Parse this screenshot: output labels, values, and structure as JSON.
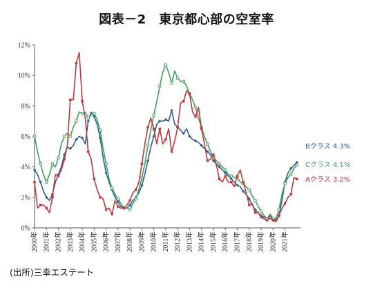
{
  "title": "図表－2　東京都心部の空室率",
  "source_note": "(出所)三幸エステート",
  "chart_data": {
    "type": "line",
    "title": "図表－2　東京都心部の空室率",
    "xlabel": "",
    "ylabel": "",
    "ylim": [
      0,
      12
    ],
    "yticks": [
      "0%",
      "2%",
      "4%",
      "6%",
      "8%",
      "10%",
      "12%"
    ],
    "xlim": [
      2000,
      2022.3
    ],
    "xticks": [
      "2000年",
      "2001年",
      "2002年",
      "2003年",
      "2004年",
      "2005年",
      "2006年",
      "2007年",
      "2008年",
      "2009年",
      "2010年",
      "2011年",
      "2012年",
      "2013年",
      "2014年",
      "2015年",
      "2016年",
      "2017年",
      "2018年",
      "2019年",
      "2020年",
      "2021年"
    ],
    "grid": false,
    "legend": "right, next to line ends",
    "series": [
      {
        "name": "Bクラス",
        "end_label": "Bクラス 4.3%",
        "color": "#2f5d9e",
        "marker": "diamond",
        "points": [
          [
            2000.0,
            3.8
          ],
          [
            2000.25,
            3.5
          ],
          [
            2000.5,
            3.0
          ],
          [
            2000.75,
            2.4
          ],
          [
            2001.0,
            2.0
          ],
          [
            2001.25,
            1.8
          ],
          [
            2001.5,
            2.2
          ],
          [
            2001.75,
            3.0
          ],
          [
            2002.0,
            3.5
          ],
          [
            2002.25,
            4.0
          ],
          [
            2002.5,
            4.8
          ],
          [
            2002.75,
            5.3
          ],
          [
            2003.0,
            5.2
          ],
          [
            2003.25,
            5.4
          ],
          [
            2003.5,
            5.8
          ],
          [
            2003.75,
            6.0
          ],
          [
            2004.0,
            5.9
          ],
          [
            2004.25,
            5.5
          ],
          [
            2004.5,
            7.0
          ],
          [
            2004.75,
            7.6
          ],
          [
            2005.0,
            7.3
          ],
          [
            2005.25,
            6.8
          ],
          [
            2005.5,
            5.9
          ],
          [
            2005.75,
            4.6
          ],
          [
            2006.0,
            3.6
          ],
          [
            2006.25,
            3.0
          ],
          [
            2006.5,
            2.5
          ],
          [
            2006.75,
            2.0
          ],
          [
            2007.0,
            1.7
          ],
          [
            2007.25,
            1.4
          ],
          [
            2007.5,
            1.3
          ],
          [
            2007.75,
            1.3
          ],
          [
            2008.0,
            1.5
          ],
          [
            2008.25,
            1.8
          ],
          [
            2008.5,
            2.0
          ],
          [
            2008.75,
            2.3
          ],
          [
            2009.0,
            2.8
          ],
          [
            2009.25,
            3.5
          ],
          [
            2009.5,
            4.4
          ],
          [
            2009.75,
            5.3
          ],
          [
            2010.0,
            6.0
          ],
          [
            2010.25,
            6.8
          ],
          [
            2010.5,
            7.0
          ],
          [
            2010.75,
            7.0
          ],
          [
            2011.0,
            7.1
          ],
          [
            2011.25,
            7.0
          ],
          [
            2011.5,
            7.7
          ],
          [
            2011.75,
            6.8
          ],
          [
            2012.0,
            6.6
          ],
          [
            2012.25,
            6.4
          ],
          [
            2012.5,
            6.2
          ],
          [
            2012.75,
            6.5
          ],
          [
            2013.0,
            6.0
          ],
          [
            2013.25,
            5.8
          ],
          [
            2013.5,
            5.7
          ],
          [
            2013.75,
            5.6
          ],
          [
            2014.0,
            5.4
          ],
          [
            2014.25,
            5.2
          ],
          [
            2014.5,
            5.0
          ],
          [
            2014.75,
            4.8
          ],
          [
            2015.0,
            4.4
          ],
          [
            2015.25,
            4.2
          ],
          [
            2015.5,
            4.0
          ],
          [
            2015.75,
            3.8
          ],
          [
            2016.0,
            3.6
          ],
          [
            2016.25,
            3.4
          ],
          [
            2016.5,
            3.2
          ],
          [
            2016.75,
            3.0
          ],
          [
            2017.0,
            2.8
          ],
          [
            2017.25,
            2.7
          ],
          [
            2017.5,
            2.4
          ],
          [
            2017.75,
            2.2
          ],
          [
            2018.0,
            1.9
          ],
          [
            2018.25,
            1.5
          ],
          [
            2018.5,
            1.2
          ],
          [
            2018.75,
            1.0
          ],
          [
            2019.0,
            0.8
          ],
          [
            2019.25,
            0.7
          ],
          [
            2019.5,
            0.6
          ],
          [
            2019.75,
            0.6
          ],
          [
            2020.0,
            0.55
          ],
          [
            2020.25,
            0.5
          ],
          [
            2020.5,
            0.8
          ],
          [
            2020.75,
            1.8
          ],
          [
            2021.0,
            3.0
          ],
          [
            2021.25,
            3.6
          ],
          [
            2021.5,
            3.9
          ],
          [
            2021.75,
            4.1
          ],
          [
            2022.0,
            4.3
          ]
        ]
      },
      {
        "name": "Cクラス",
        "end_label": "Cクラス 4.1%",
        "color": "#3aa354",
        "marker": "circle",
        "points": [
          [
            2000.0,
            6.0
          ],
          [
            2000.25,
            5.0
          ],
          [
            2000.5,
            4.2
          ],
          [
            2000.75,
            3.5
          ],
          [
            2001.0,
            3.0
          ],
          [
            2001.25,
            3.5
          ],
          [
            2001.5,
            4.2
          ],
          [
            2001.75,
            4.0
          ],
          [
            2002.0,
            4.6
          ],
          [
            2002.25,
            5.5
          ],
          [
            2002.5,
            6.0
          ],
          [
            2002.75,
            6.2
          ],
          [
            2003.0,
            6.0
          ],
          [
            2003.25,
            6.6
          ],
          [
            2003.5,
            7.0
          ],
          [
            2003.75,
            7.6
          ],
          [
            2004.0,
            7.5
          ],
          [
            2004.25,
            7.6
          ],
          [
            2004.5,
            7.2
          ],
          [
            2004.75,
            7.4
          ],
          [
            2005.0,
            7.5
          ],
          [
            2005.25,
            7.1
          ],
          [
            2005.5,
            6.4
          ],
          [
            2005.75,
            5.2
          ],
          [
            2006.0,
            4.2
          ],
          [
            2006.25,
            3.2
          ],
          [
            2006.5,
            2.6
          ],
          [
            2006.75,
            2.2
          ],
          [
            2007.0,
            1.9
          ],
          [
            2007.25,
            1.6
          ],
          [
            2007.5,
            1.3
          ],
          [
            2007.75,
            1.3
          ],
          [
            2008.0,
            1.2
          ],
          [
            2008.25,
            1.6
          ],
          [
            2008.5,
            1.9
          ],
          [
            2008.75,
            2.5
          ],
          [
            2009.0,
            3.3
          ],
          [
            2009.25,
            4.2
          ],
          [
            2009.5,
            5.4
          ],
          [
            2009.75,
            6.4
          ],
          [
            2010.0,
            7.4
          ],
          [
            2010.25,
            8.3
          ],
          [
            2010.5,
            9.3
          ],
          [
            2010.75,
            10.2
          ],
          [
            2011.0,
            10.7
          ],
          [
            2011.25,
            10.2
          ],
          [
            2011.5,
            9.5
          ],
          [
            2011.75,
            10.3
          ],
          [
            2012.0,
            9.8
          ],
          [
            2012.25,
            9.6
          ],
          [
            2012.5,
            9.6
          ],
          [
            2012.75,
            9.3
          ],
          [
            2013.0,
            8.8
          ],
          [
            2013.25,
            8.4
          ],
          [
            2013.5,
            7.9
          ],
          [
            2013.75,
            7.2
          ],
          [
            2014.0,
            6.6
          ],
          [
            2014.25,
            6.0
          ],
          [
            2014.5,
            5.5
          ],
          [
            2014.75,
            5.0
          ],
          [
            2015.0,
            4.6
          ],
          [
            2015.25,
            4.4
          ],
          [
            2015.5,
            4.2
          ],
          [
            2015.75,
            4.0
          ],
          [
            2016.0,
            3.8
          ],
          [
            2016.25,
            3.5
          ],
          [
            2016.5,
            3.4
          ],
          [
            2016.75,
            3.3
          ],
          [
            2017.0,
            3.3
          ],
          [
            2017.25,
            3.0
          ],
          [
            2017.5,
            2.9
          ],
          [
            2017.75,
            2.7
          ],
          [
            2018.0,
            2.5
          ],
          [
            2018.25,
            2.1
          ],
          [
            2018.5,
            1.8
          ],
          [
            2018.75,
            1.4
          ],
          [
            2019.0,
            1.1
          ],
          [
            2019.25,
            0.8
          ],
          [
            2019.5,
            0.6
          ],
          [
            2019.75,
            0.9
          ],
          [
            2020.0,
            0.6
          ],
          [
            2020.25,
            0.6
          ],
          [
            2020.5,
            1.2
          ],
          [
            2020.75,
            2.2
          ],
          [
            2021.0,
            2.9
          ],
          [
            2021.25,
            3.3
          ],
          [
            2021.5,
            3.5
          ],
          [
            2021.75,
            3.9
          ],
          [
            2022.0,
            4.1
          ]
        ]
      },
      {
        "name": "Aクラス",
        "end_label": "Aクラス 3.2%",
        "color": "#c8353a",
        "marker": "square",
        "points": [
          [
            2000.0,
            3.0
          ],
          [
            2000.25,
            1.3
          ],
          [
            2000.5,
            1.5
          ],
          [
            2000.75,
            1.5
          ],
          [
            2001.0,
            1.3
          ],
          [
            2001.25,
            1.0
          ],
          [
            2001.5,
            2.0
          ],
          [
            2001.75,
            3.5
          ],
          [
            2002.0,
            3.4
          ],
          [
            2002.25,
            3.8
          ],
          [
            2002.5,
            4.5
          ],
          [
            2002.75,
            5.4
          ],
          [
            2003.0,
            8.4
          ],
          [
            2003.25,
            8.4
          ],
          [
            2003.5,
            10.8
          ],
          [
            2003.75,
            11.5
          ],
          [
            2004.0,
            8.3
          ],
          [
            2004.25,
            7.2
          ],
          [
            2004.5,
            5.0
          ],
          [
            2004.75,
            4.5
          ],
          [
            2005.0,
            3.2
          ],
          [
            2005.25,
            2.5
          ],
          [
            2005.5,
            2.0
          ],
          [
            2005.75,
            1.9
          ],
          [
            2006.0,
            1.2
          ],
          [
            2006.25,
            1.3
          ],
          [
            2006.5,
            0.9
          ],
          [
            2006.75,
            1.8
          ],
          [
            2007.0,
            1.4
          ],
          [
            2007.25,
            1.3
          ],
          [
            2007.5,
            1.3
          ],
          [
            2007.75,
            1.5
          ],
          [
            2008.0,
            1.8
          ],
          [
            2008.25,
            2.3
          ],
          [
            2008.5,
            2.5
          ],
          [
            2008.75,
            3.0
          ],
          [
            2009.0,
            4.2
          ],
          [
            2009.25,
            5.5
          ],
          [
            2009.5,
            6.6
          ],
          [
            2009.75,
            7.2
          ],
          [
            2010.0,
            6.5
          ],
          [
            2010.25,
            5.5
          ],
          [
            2010.5,
            6.5
          ],
          [
            2010.75,
            5.5
          ],
          [
            2011.0,
            5.8
          ],
          [
            2011.25,
            6.5
          ],
          [
            2011.5,
            5.0
          ],
          [
            2011.75,
            5.7
          ],
          [
            2012.0,
            6.6
          ],
          [
            2012.25,
            8.2
          ],
          [
            2012.5,
            8.3
          ],
          [
            2012.75,
            9.0
          ],
          [
            2013.0,
            8.8
          ],
          [
            2013.25,
            7.6
          ],
          [
            2013.5,
            7.3
          ],
          [
            2013.75,
            7.9
          ],
          [
            2014.0,
            6.5
          ],
          [
            2014.25,
            5.5
          ],
          [
            2014.5,
            4.4
          ],
          [
            2014.75,
            4.5
          ],
          [
            2015.0,
            4.8
          ],
          [
            2015.25,
            4.1
          ],
          [
            2015.5,
            3.2
          ],
          [
            2015.75,
            3.0
          ],
          [
            2016.0,
            3.4
          ],
          [
            2016.25,
            3.0
          ],
          [
            2016.5,
            3.0
          ],
          [
            2016.75,
            2.7
          ],
          [
            2017.0,
            3.4
          ],
          [
            2017.25,
            3.8
          ],
          [
            2017.5,
            3.0
          ],
          [
            2017.75,
            2.3
          ],
          [
            2018.0,
            1.5
          ],
          [
            2018.25,
            1.6
          ],
          [
            2018.5,
            1.0
          ],
          [
            2018.75,
            1.0
          ],
          [
            2019.0,
            0.7
          ],
          [
            2019.25,
            0.6
          ],
          [
            2019.5,
            0.5
          ],
          [
            2019.75,
            0.8
          ],
          [
            2020.0,
            0.5
          ],
          [
            2020.25,
            0.4
          ],
          [
            2020.5,
            0.8
          ],
          [
            2020.75,
            1.3
          ],
          [
            2021.0,
            1.6
          ],
          [
            2021.25,
            2.0
          ],
          [
            2021.5,
            2.2
          ],
          [
            2021.75,
            3.3
          ],
          [
            2022.0,
            3.2
          ]
        ]
      }
    ]
  }
}
